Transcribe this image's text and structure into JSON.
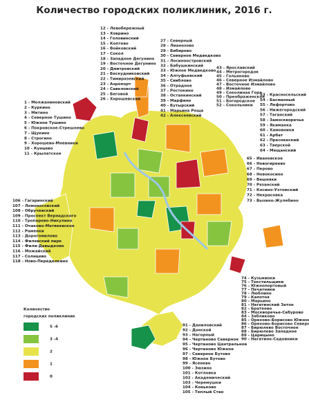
{
  "title": "Количество городских поликлиник, 2016 г.",
  "legend": {
    "title_lines": [
      "Количество",
      "городских поликлиник"
    ],
    "items": [
      {
        "label": "5 -6",
        "color": "#16924a"
      },
      {
        "label": "3 -4",
        "color": "#86c440"
      },
      {
        "label": "2",
        "color": "#e7e34c"
      },
      {
        "label": "1",
        "color": "#f3931f"
      },
      {
        "label": "0",
        "color": "#be1e2d"
      }
    ]
  },
  "lists": [
    [
      "12 - Левобережный",
      "13 - Ховрино",
      "14 - Головинский",
      "15 - Коптево",
      "16 - Войковский",
      "17 - Сокол",
      "18 - Западное Дегунино",
      "19 - Восточное Дегунино",
      "20 - Дмитровский",
      "21 - Бескудниковский",
      "22 - Тимирязевский",
      "23 - Аэропорт",
      "24 - Савеловский",
      "25 - Беговой",
      "26 - Хорошевский"
    ],
    [
      "27 - Северный",
      "28 - Лианозово",
      "29 - Бибирево",
      "30 - Северное Медведково",
      "31 - Лосиноостровский",
      "32 - Бабушкинский",
      "33 - Южное Медведково",
      "34 - Алтуфьевский",
      "35 - Свиблово",
      "36 - Отрадное",
      "37 - Ростокино",
      "38 - Останкинский",
      "39 - Марфино",
      "40 - Бутырский",
      "41 - Марьина Роща",
      "42 - Алексеевский"
    ],
    [
      "43 - Ярославский",
      "44 - Метрогородок",
      "45 - Гольяново",
      "46 - Северное Измайлово",
      "47 - Восточное Измайлово",
      "48 - Измайлово",
      "49 - Соколиная Гора",
      "50 - Преображенское",
      "51 - Богородское",
      "52 - Сокольники"
    ],
    [
      "53 - Красносельский",
      "54 - Басманный",
      "55 - Лефортово",
      "56 - Нижегородский",
      "57 - Таганский",
      "58 - Замоскворечье",
      "59 - Якиманка",
      "60 - Хамовники",
      "61 - Арбат",
      "62 - Пресненский",
      "63 - Тверской",
      "64 - Мещанский"
    ],
    [
      "65 - Ивановское",
      "66 - Новогиреево",
      "67 - Перово",
      "68 - Новокосино",
      "69 - Вешняки",
      "70 - Рязанский",
      "71 - Косино-Ухтомский",
      "72 - Некрасовка",
      "73 - Выхино-Жулебино"
    ],
    [
      "1 - Молжаниновский",
      "2 - Куркино",
      "3 - Митино",
      "4 - Северное Тушино",
      "5 - Южное Тушино",
      "6 - Покровское-Стрешнево",
      "7 - Щукино",
      "8 - Строгино",
      "9 - Хорошево-Мневники",
      "10 - Кунцево",
      "11 - Крылатское"
    ],
    [
      "106 - Гагаринский",
      "107 - Ломоносовский",
      "108 - Обручевский",
      "109 - Проспект Вернадского",
      "110 - Тропарево-Никулино",
      "111 - Очаково-Матвеевское",
      "112 - Раменки",
      "113 - Дорогомилово",
      "114 - Филевский парк",
      "115 - Фили-Давыдково",
      "116 - Можайский",
      "117 - Солнцево",
      "118 - Ново-Переделкино"
    ],
    [
      "74 - Кузьминки",
      "75 - Текстильщики",
      "76 - Южнопортовый",
      "77 - Печатники",
      "78 - Люблино",
      "79 - Капотня",
      "80 - Марьино",
      "81 - Нагатинский Затон",
      "82 - Братеево",
      "83 - Москворечье-Сабурово",
      "84 - Зябликово",
      "85 - Орехово-Борисово Южное",
      "86 - Орехово-Борисово Северное",
      "87 - Бирюлево Восточное",
      "88 - Бирюлево Западное",
      "89 - Царицыно",
      "90 - Нагатино-Садовники"
    ],
    [
      "91 - Даниловский",
      "92 - Донской",
      "93 - Нагорный",
      "94 - Чертаново Северное",
      "95 - Чертаново Центральное",
      "96 - Чертаново Южное",
      "97 - Северное Бутово",
      "98 - Южное Бутово",
      "99 - Ясенево",
      "100 - Зюзино",
      "101 - Котловка",
      "102 - Академический",
      "103 - Черемушки",
      "104 - Коньково",
      "105 - Теплый Стан"
    ]
  ]
}
